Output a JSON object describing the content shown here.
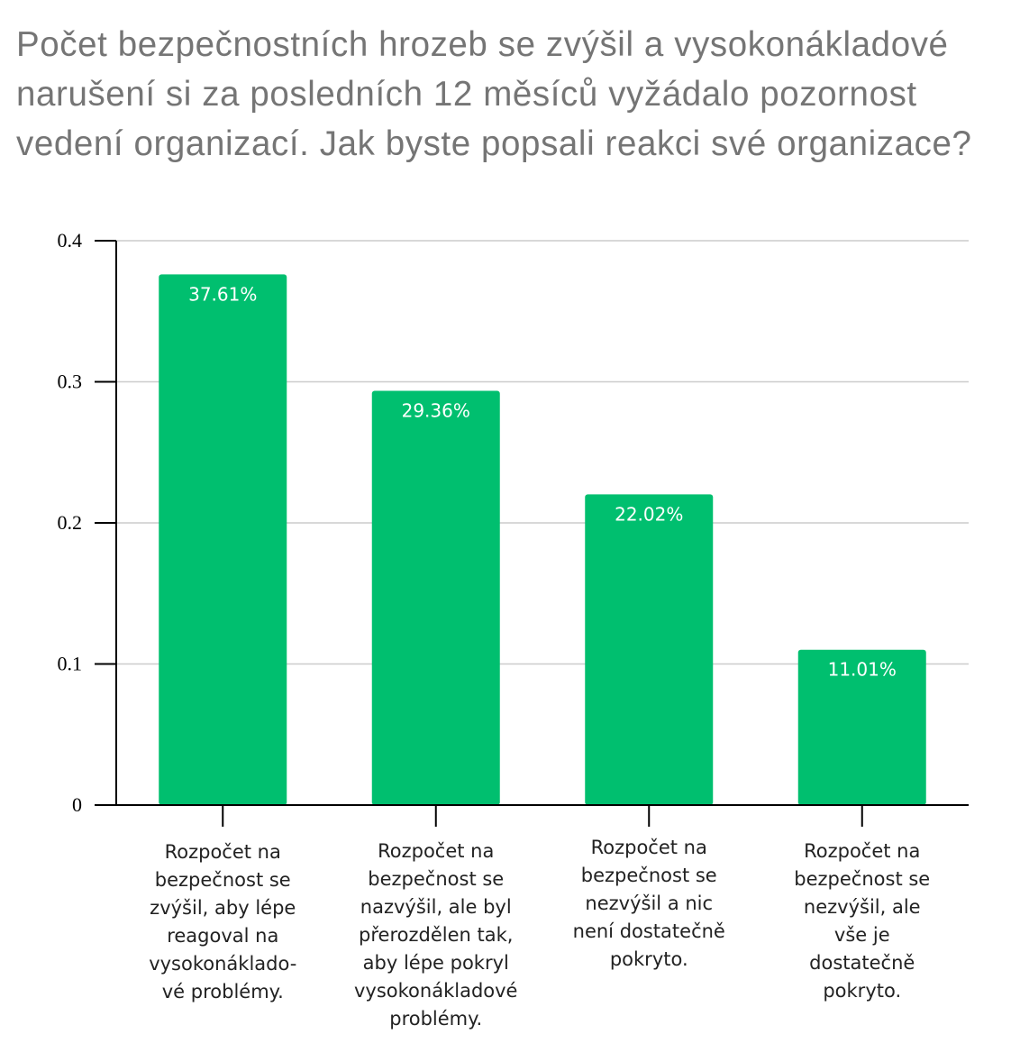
{
  "chart_data": {
    "type": "bar",
    "title": "Počet bezpečnostních hrozeb se zvýšil a vysokonákladové narušení si za posledních 12 měsíců vyžádalo pozornost vedení organizací. Jak byste popsali reakci své organizace?",
    "categories": [
      "Rozpočet na bezpečnost se zvýšil, aby lépe reagoval na vysokonákladové problémy.",
      "Rozpočet na bezpečnost se nazvýšil, ale byl přerozdělen tak, aby lépe pokryl vysokonákladové problémy.",
      "Rozpočet na bezpečnost se nezvýšil a nic není dostatečně pokryto.",
      "Rozpočet na bezpečnost se nezvýšil, ale vše je dostatečně pokryto."
    ],
    "category_lines": [
      [
        "Rozpočet na",
        "bezpečnost se",
        "zvýšil, aby lépe",
        "reagoval na",
        "vysokonáklado-",
        "vé problémy."
      ],
      [
        "Rozpočet na",
        "bezpečnost se",
        "nazvýšil, ale byl",
        "přerozdělen tak,",
        "aby lépe pokryl",
        "vysokonákladové",
        "problémy."
      ],
      [
        "Rozpočet na",
        "bezpečnost se",
        "nezvýšil a nic",
        "není dostatečně",
        "pokryto."
      ],
      [
        "Rozpočet na",
        "bezpečnost se",
        "nezvýšil, ale",
        "vše je",
        "dostatečně",
        "pokryto."
      ]
    ],
    "values": [
      0.3761,
      0.2936,
      0.2202,
      0.1101
    ],
    "data_labels": [
      "37.61%",
      "29.36%",
      "22.02%",
      "11.01%"
    ],
    "yticks": [
      "0",
      "0.1",
      "0.2",
      "0.3",
      "0.4"
    ],
    "ytick_values": [
      0,
      0.1,
      0.2,
      0.3,
      0.4
    ],
    "ylim": [
      0,
      0.4
    ],
    "xlabel": "",
    "ylabel": "",
    "grid": true,
    "bar_color": "#00bf6f",
    "grid_color": "#cccccc"
  }
}
